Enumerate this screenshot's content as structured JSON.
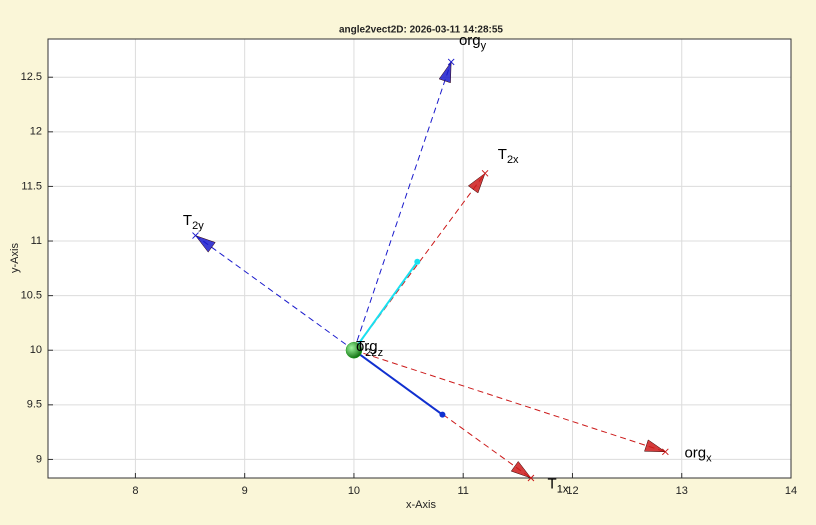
{
  "chart_data": {
    "type": "vector",
    "title": "angle2vect2D: 2026-03-11 14:28:55",
    "xlabel": "x-Axis",
    "ylabel": "y-Axis",
    "xlim": [
      7.2,
      14
    ],
    "ylim": [
      8.83,
      12.85
    ],
    "xticks": [
      8,
      9,
      10,
      11,
      12,
      13,
      14
    ],
    "yticks": [
      9,
      9.5,
      10,
      10.5,
      11,
      11.5,
      12,
      12.5
    ],
    "grid": true,
    "origin": {
      "x": 10,
      "y": 10,
      "color": "#1fa51f"
    },
    "origin_labels": [
      {
        "label": "T",
        "subscript": "2z"
      },
      {
        "label": "org",
        "subscript": "z"
      }
    ],
    "vectors": [
      {
        "label": "org",
        "subscript": "y",
        "x": [
          10,
          10.89
        ],
        "y": [
          10,
          12.64
        ],
        "color": "#1a1acc",
        "style": "dashed",
        "arrow": true
      },
      {
        "label": "T",
        "subscript": "2x",
        "x": [
          10,
          11.2
        ],
        "y": [
          10,
          11.62
        ],
        "color": "#cc1a1a",
        "style": "dashed",
        "arrow": true
      },
      {
        "label": "T",
        "subscript": "2y",
        "x": [
          10,
          8.55
        ],
        "y": [
          10,
          11.05
        ],
        "color": "#1a1acc",
        "style": "dashed",
        "arrow": true
      },
      {
        "label": "org",
        "subscript": "x",
        "x": [
          10,
          12.85
        ],
        "y": [
          10,
          9.07
        ],
        "color": "#cc1a1a",
        "style": "dashed",
        "arrow": true
      },
      {
        "label": "T",
        "subscript": "1x",
        "x": [
          10,
          11.62
        ],
        "y": [
          10,
          8.83
        ],
        "color": "#cc1a1a",
        "style": "dashed",
        "arrow": true
      },
      {
        "x": [
          10,
          10.58
        ],
        "y": [
          10,
          10.81
        ],
        "color": "#19e0f0",
        "style": "solid",
        "arrow": false
      },
      {
        "x": [
          10,
          10.81
        ],
        "y": [
          10,
          9.41
        ],
        "color": "#1030d0",
        "style": "solid",
        "arrow": false
      }
    ]
  }
}
